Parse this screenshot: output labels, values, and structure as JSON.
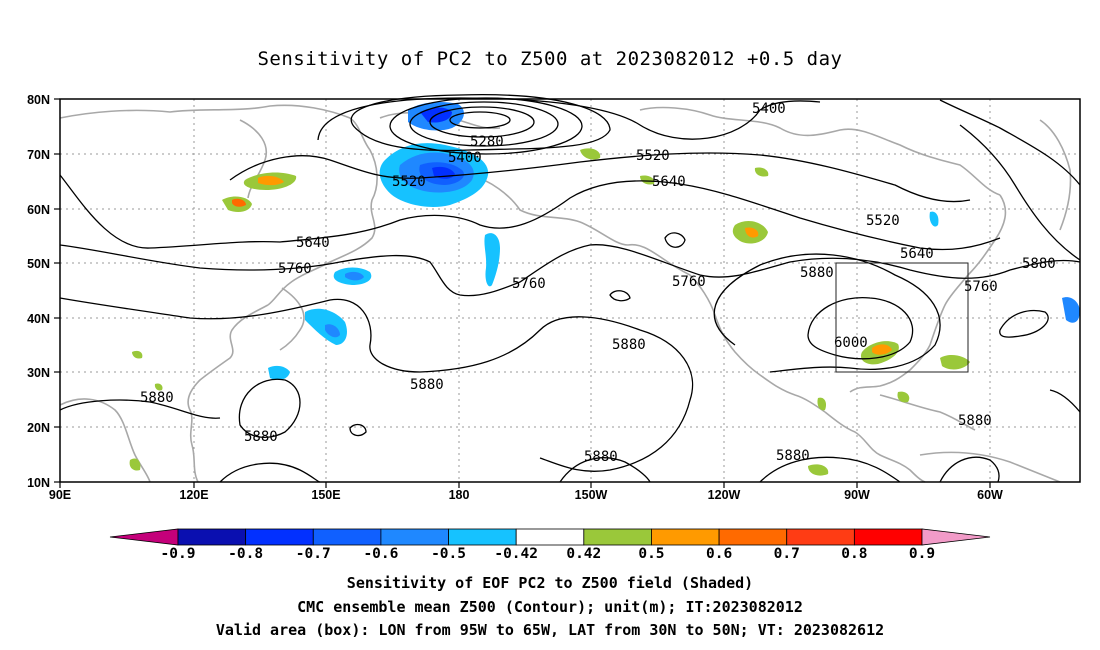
{
  "title": "Sensitivity of PC2 to Z500 at 2023082012 +0.5 day",
  "map": {
    "lon_labels": [
      "90E",
      "120E",
      "150E",
      "180",
      "150W",
      "120W",
      "90W",
      "60W"
    ],
    "lat_labels": [
      "80N",
      "70N",
      "60N",
      "50N",
      "40N",
      "30N",
      "20N",
      "10N"
    ],
    "box": {
      "lon_from": "95W",
      "lon_to": "65W",
      "lat_from": "30N",
      "lat_to": "50N"
    }
  },
  "contour_labels": [
    "5400",
    "5280",
    "5400",
    "5520",
    "5520",
    "5640",
    "5640",
    "5760",
    "5760",
    "5760",
    "5520",
    "5640",
    "5880",
    "5880",
    "5760",
    "5880",
    "6000",
    "5880",
    "5880",
    "5880",
    "5880",
    "5880",
    "5880"
  ],
  "colorbar": {
    "labels": [
      "-0.9",
      "-0.8",
      "-0.7",
      "-0.6",
      "-0.5",
      "-0.42",
      "0.42",
      "0.5",
      "0.6",
      "0.7",
      "0.8",
      "0.9"
    ],
    "colors": [
      "#c4007a",
      "#0a0fb0",
      "#0230ff",
      "#1060ff",
      "#1f88ff",
      "#16c2ff",
      "#ffffff",
      "#9ac83a",
      "#ff9a00",
      "#ff6a00",
      "#ff3c14",
      "#ff0000",
      "#f29bc8"
    ]
  },
  "captions": [
    "Sensitivity of EOF PC2 to Z500 field (Shaded)",
    "CMC ensemble mean Z500 (Contour); unit(m); IT:2023082012",
    "Valid area (box): LON from 95W to 65W, LAT from 30N to 50N; VT: 2023082612"
  ]
}
